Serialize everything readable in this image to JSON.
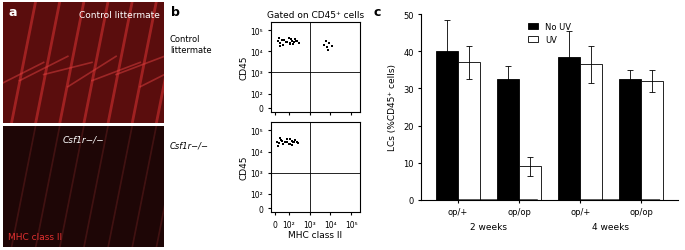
{
  "panel_labels": [
    "a",
    "b",
    "c"
  ],
  "image_panel": {
    "images": [
      {
        "label": "Control littermate"
      },
      {
        "label": "Csf1r−/−"
      }
    ],
    "stain": "MHC class II"
  },
  "chart_data": [
    {
      "type": "scatter",
      "title": "Gated on CD45⁺ cells",
      "row_label": "Control littermate",
      "y_label": "CD45",
      "log": true,
      "tick_labels": "y",
      "color": "#000000",
      "xlim": [
        -30,
        250000
      ],
      "ylim": [
        -30,
        250000
      ],
      "xticks": [
        0,
        {
          "value": 100,
          "label": "10²"
        },
        {
          "value": 1000,
          "label": "10³"
        },
        {
          "value": 10000,
          "label": "10⁴"
        },
        {
          "value": 100000,
          "label": "10⁵"
        }
      ],
      "yticks": [
        0,
        {
          "value": 100,
          "label": "10²"
        },
        {
          "value": 1000,
          "label": "10³"
        },
        {
          "value": 10000,
          "label": "10⁴"
        },
        {
          "value": 100000,
          "label": "10⁵"
        }
      ],
      "gates": {
        "x": 1000,
        "y": 1000
      },
      "x": [
        20,
        35,
        50,
        60,
        80,
        100,
        120,
        150,
        180,
        200,
        250,
        300,
        40,
        70,
        90,
        130,
        160,
        220,
        30,
        110,
        5000,
        7000,
        9000,
        12000,
        6000,
        8000
      ],
      "y": [
        30000,
        25000,
        35000,
        20000,
        28000,
        40000,
        22000,
        32000,
        26000,
        38000,
        30000,
        24000,
        18000,
        33000,
        27000,
        36000,
        21000,
        29000,
        42000,
        25000,
        20000,
        15000,
        25000,
        18000,
        30000,
        12000
      ]
    },
    {
      "type": "scatter",
      "row_label": "Csf1r−/−",
      "x_label": "MHC class II",
      "y_label": "CD45",
      "log": true,
      "color": "#000000",
      "xlim": [
        -30,
        250000
      ],
      "ylim": [
        -30,
        250000
      ],
      "xticks": [
        0,
        {
          "value": 100,
          "label": "10²"
        },
        {
          "value": 1000,
          "label": "10³"
        },
        {
          "value": 10000,
          "label": "10⁴"
        },
        {
          "value": 100000,
          "label": "10⁵"
        }
      ],
      "yticks": [
        0,
        {
          "value": 100,
          "label": "10²"
        },
        {
          "value": 1000,
          "label": "10³"
        },
        {
          "value": 10000,
          "label": "10⁴"
        },
        {
          "value": 100000,
          "label": "10⁵"
        }
      ],
      "gates": {
        "x": 1000,
        "y": 1000
      },
      "x": [
        15,
        30,
        45,
        60,
        75,
        90,
        110,
        140,
        170,
        200,
        240,
        280,
        25,
        55,
        85,
        120,
        150,
        190,
        35,
        100
      ],
      "y": [
        30000,
        26000,
        35000,
        22000,
        28000,
        38000,
        24000,
        31000,
        27000,
        36000,
        29000,
        25000,
        19000,
        33000,
        27000,
        40000,
        21000,
        30000,
        43000,
        24000
      ]
    },
    {
      "type": "bar",
      "y_label": "LCs (%CD45⁺ cells)",
      "categories": [
        "op/+",
        "op/op",
        "op/+",
        "op/op"
      ],
      "groups": [
        "2 weeks",
        "4 weeks"
      ],
      "ylim": [
        0,
        50
      ],
      "yticks": [
        0,
        10,
        20,
        30,
        40,
        50
      ],
      "legend": "upper center",
      "series": [
        {
          "name": "No UV",
          "color": "#000000",
          "values": [
            40,
            32.5,
            38.5,
            32.5
          ],
          "errors": [
            8.5,
            3.5,
            7,
            2.5
          ]
        },
        {
          "name": "UV",
          "color": "#ffffff",
          "values": [
            37,
            9,
            36.5,
            32
          ],
          "errors": [
            4.5,
            2.5,
            5,
            3
          ]
        }
      ]
    }
  ]
}
